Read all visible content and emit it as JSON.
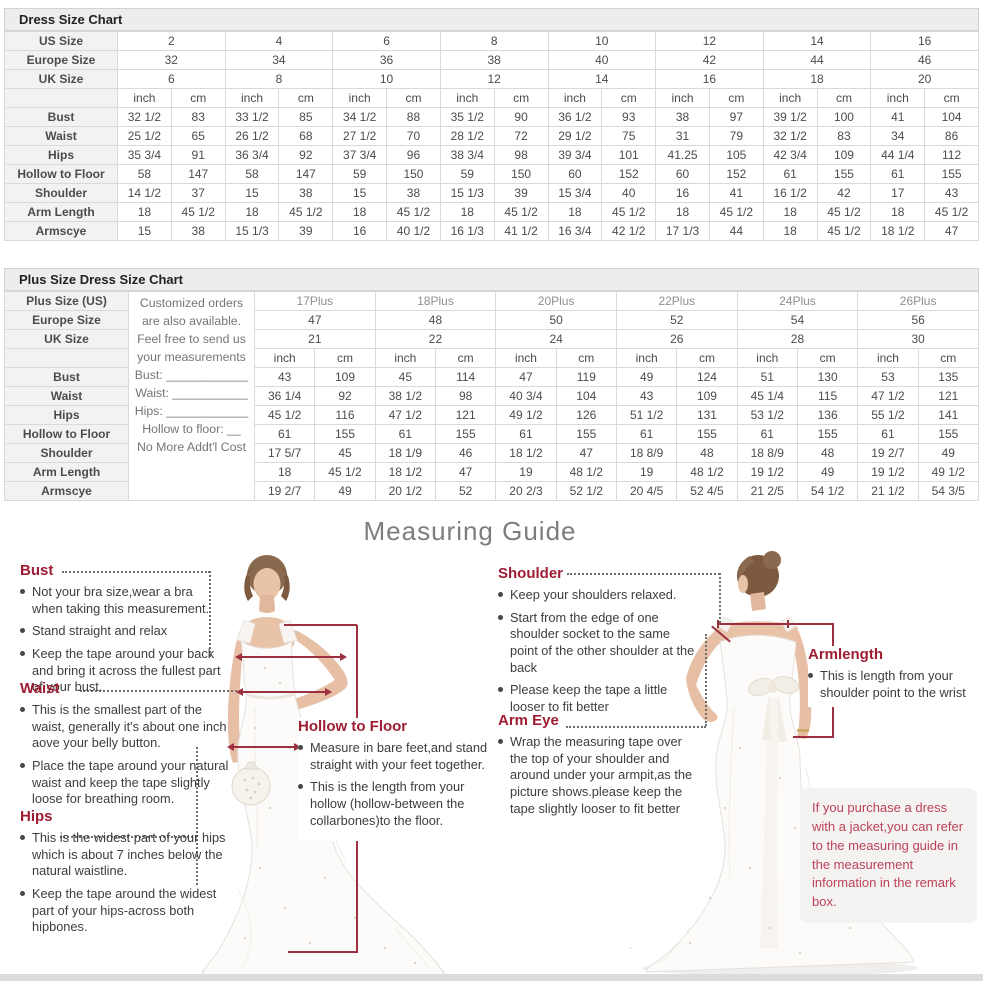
{
  "colors": {
    "heading_red": "#9e1d33",
    "note_red": "#bb4258",
    "line_red": "#9d3040",
    "title_gray": "#7d7d7d"
  },
  "size_chart": {
    "title": "Dress Size Chart",
    "unit_headers": [
      "inch",
      "cm"
    ],
    "size_rows": [
      {
        "label": "US Size",
        "values": [
          "2",
          "4",
          "6",
          "8",
          "10",
          "12",
          "14",
          "16"
        ]
      },
      {
        "label": "Europe Size",
        "values": [
          "32",
          "34",
          "36",
          "38",
          "40",
          "42",
          "44",
          "46"
        ]
      },
      {
        "label": "UK Size",
        "values": [
          "6",
          "8",
          "10",
          "12",
          "14",
          "16",
          "18",
          "20"
        ]
      }
    ],
    "measure_rows": [
      {
        "label": "Bust",
        "cells": [
          [
            "32 1/2",
            "83"
          ],
          [
            "33 1/2",
            "85"
          ],
          [
            "34 1/2",
            "88"
          ],
          [
            "35 1/2",
            "90"
          ],
          [
            "36 1/2",
            "93"
          ],
          [
            "38",
            "97"
          ],
          [
            "39 1/2",
            "100"
          ],
          [
            "41",
            "104"
          ]
        ]
      },
      {
        "label": "Waist",
        "cells": [
          [
            "25 1/2",
            "65"
          ],
          [
            "26 1/2",
            "68"
          ],
          [
            "27 1/2",
            "70"
          ],
          [
            "28 1/2",
            "72"
          ],
          [
            "29 1/2",
            "75"
          ],
          [
            "31",
            "79"
          ],
          [
            "32 1/2",
            "83"
          ],
          [
            "34",
            "86"
          ]
        ]
      },
      {
        "label": "Hips",
        "cells": [
          [
            "35 3/4",
            "91"
          ],
          [
            "36 3/4",
            "92"
          ],
          [
            "37 3/4",
            "96"
          ],
          [
            "38 3/4",
            "98"
          ],
          [
            "39 3/4",
            "101"
          ],
          [
            "41.25",
            "105"
          ],
          [
            "42 3/4",
            "109"
          ],
          [
            "44 1/4",
            "112"
          ]
        ]
      },
      {
        "label": "Hollow to Floor",
        "cells": [
          [
            "58",
            "147"
          ],
          [
            "58",
            "147"
          ],
          [
            "59",
            "150"
          ],
          [
            "59",
            "150"
          ],
          [
            "60",
            "152"
          ],
          [
            "60",
            "152"
          ],
          [
            "61",
            "155"
          ],
          [
            "61",
            "155"
          ]
        ]
      },
      {
        "label": "Shoulder",
        "cells": [
          [
            "14 1/2",
            "37"
          ],
          [
            "15",
            "38"
          ],
          [
            "15",
            "38"
          ],
          [
            "15 1/3",
            "39"
          ],
          [
            "15 3/4",
            "40"
          ],
          [
            "16",
            "41"
          ],
          [
            "16 1/2",
            "42"
          ],
          [
            "17",
            "43"
          ]
        ]
      },
      {
        "label": "Arm Length",
        "cells": [
          [
            "18",
            "45 1/2"
          ],
          [
            "18",
            "45 1/2"
          ],
          [
            "18",
            "45 1/2"
          ],
          [
            "18",
            "45 1/2"
          ],
          [
            "18",
            "45 1/2"
          ],
          [
            "18",
            "45 1/2"
          ],
          [
            "18",
            "45 1/2"
          ],
          [
            "18",
            "45 1/2"
          ]
        ]
      },
      {
        "label": "Armscye",
        "cells": [
          [
            "15",
            "38"
          ],
          [
            "15 1/3",
            "39"
          ],
          [
            "16",
            "40 1/2"
          ],
          [
            "16 1/3",
            "41 1/2"
          ],
          [
            "16 3/4",
            "42 1/2"
          ],
          [
            "17 1/3",
            "44"
          ],
          [
            "18",
            "45 1/2"
          ],
          [
            "18 1/2",
            "47"
          ]
        ]
      }
    ]
  },
  "plus_chart": {
    "title": "Plus Size Dress Size Chart",
    "unit_headers": [
      "inch",
      "cm"
    ],
    "size_rows": [
      {
        "label": "Plus Size (US)",
        "values": [
          "17Plus",
          "18Plus",
          "20Plus",
          "22Plus",
          "24Plus",
          "26Plus"
        ]
      },
      {
        "label": "Europe Size",
        "values": [
          "47",
          "48",
          "50",
          "52",
          "54",
          "56"
        ]
      },
      {
        "label": "UK Size",
        "values": [
          "21",
          "22",
          "24",
          "26",
          "28",
          "30"
        ]
      }
    ],
    "custom_note_lines": [
      "Customized orders",
      "are also available.",
      "Feel free to send us",
      "your measurements",
      "Bust: ____________",
      "Waist: ___________",
      "Hips: ____________",
      "Hollow to floor: __",
      "No More Addt'l Cost"
    ],
    "measure_rows": [
      {
        "label": "Bust",
        "cells": [
          [
            "43",
            "109"
          ],
          [
            "45",
            "114"
          ],
          [
            "47",
            "119"
          ],
          [
            "49",
            "124"
          ],
          [
            "51",
            "130"
          ],
          [
            "53",
            "135"
          ]
        ]
      },
      {
        "label": "Waist",
        "cells": [
          [
            "36 1/4",
            "92"
          ],
          [
            "38 1/2",
            "98"
          ],
          [
            "40 3/4",
            "104"
          ],
          [
            "43",
            "109"
          ],
          [
            "45 1/4",
            "115"
          ],
          [
            "47 1/2",
            "121"
          ]
        ]
      },
      {
        "label": "Hips",
        "cells": [
          [
            "45 1/2",
            "116"
          ],
          [
            "47 1/2",
            "121"
          ],
          [
            "49 1/2",
            "126"
          ],
          [
            "51 1/2",
            "131"
          ],
          [
            "53 1/2",
            "136"
          ],
          [
            "55 1/2",
            "141"
          ]
        ]
      },
      {
        "label": "Hollow to Floor",
        "cells": [
          [
            "61",
            "155"
          ],
          [
            "61",
            "155"
          ],
          [
            "61",
            "155"
          ],
          [
            "61",
            "155"
          ],
          [
            "61",
            "155"
          ],
          [
            "61",
            "155"
          ]
        ]
      },
      {
        "label": "Shoulder",
        "cells": [
          [
            "17 5/7",
            "45"
          ],
          [
            "18 1/9",
            "46"
          ],
          [
            "18 1/2",
            "47"
          ],
          [
            "18 8/9",
            "48"
          ],
          [
            "18 8/9",
            "48"
          ],
          [
            "19 2/7",
            "49"
          ]
        ]
      },
      {
        "label": "Arm Length",
        "cells": [
          [
            "18",
            "45 1/2"
          ],
          [
            "18 1/2",
            "47"
          ],
          [
            "19",
            "48 1/2"
          ],
          [
            "19",
            "48 1/2"
          ],
          [
            "19 1/2",
            "49"
          ],
          [
            "19 1/2",
            "49 1/2"
          ]
        ]
      },
      {
        "label": "Armscye",
        "cells": [
          [
            "19 2/7",
            "49"
          ],
          [
            "20 1/2",
            "52"
          ],
          [
            "20 2/3",
            "52 1/2"
          ],
          [
            "20 4/5",
            "52 4/5"
          ],
          [
            "21 2/5",
            "54 1/2"
          ],
          [
            "21 1/2",
            "54 3/5"
          ]
        ]
      }
    ]
  },
  "measuring_guide": {
    "title": "Measuring Guide",
    "sections": [
      {
        "heading": "Bust",
        "bullets": [
          "Not your bra size,wear a bra when taking this measurement.",
          "Stand straight and relax",
          "Keep the tape around your back and bring it across the fullest part of your bust."
        ]
      },
      {
        "heading": "Waist",
        "bullets": [
          "This is the smallest part of the waist, generally it's about one inch aove your belly button.",
          "Place the tape around your natural waist and keep the tape slightly loose for breathing room."
        ]
      },
      {
        "heading": "Hips",
        "bullets": [
          "This is the widest part of your hips which is about 7 inches below the natural waistline.",
          "Keep the tape around the widest part of your hips-across both hipbones."
        ]
      },
      {
        "heading": "Hollow to Floor",
        "bullets": [
          "Measure in bare feet,and stand straight with your feet together.",
          "This is the length from your hollow (hollow-between the collarbones)to the floor."
        ]
      },
      {
        "heading": "Shoulder",
        "bullets": [
          "Keep your shoulders relaxed.",
          "Start from the edge of one shoulder socket to the same point of the other shoulder at the back",
          "Please keep the tape a little looser to fit better"
        ]
      },
      {
        "heading": "Arm Eye",
        "bullets": [
          "Wrap the measuring tape over the top of your shoulder and around under your armpit,as the picture shows.please keep the tape slightly looser to fit better"
        ]
      },
      {
        "heading": "Armlength",
        "bullets": [
          "This is length from your shoulder point to the wrist"
        ]
      }
    ],
    "jacket_note": "If you purchase a dress with a jacket,you can refer to the measuring guide in the measurement information in the remark box."
  }
}
